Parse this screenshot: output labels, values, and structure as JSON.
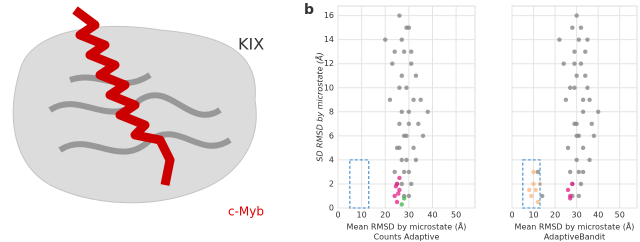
{
  "figure": {
    "panel_label": "b",
    "protein_labels": [
      "KIX",
      "c-Myb"
    ]
  },
  "chart_data": [
    {
      "type": "scatter",
      "xlabel": "Mean RMSD by microstate (Å)",
      "subtitle": "Counts Adaptive",
      "ylabel": "SD RMSD by microstate (Å)",
      "xlim": [
        0,
        58
      ],
      "ylim": [
        0,
        16.8
      ],
      "xticks": [
        0,
        10,
        20,
        30,
        40,
        50
      ],
      "yticks": [
        0,
        2,
        4,
        6,
        8,
        10,
        12,
        14,
        16
      ],
      "grid": true,
      "highlight_box": {
        "x": [
          5,
          13
        ],
        "y": [
          0,
          4
        ],
        "color": "#5a9bd4"
      },
      "series": [
        {
          "color": "#808080",
          "x": [
            25,
            27,
            28,
            30,
            29,
            31,
            27,
            26,
            33,
            35,
            24,
            26,
            32,
            30,
            28,
            34,
            22,
            29,
            31,
            27,
            25,
            33,
            30,
            36,
            23,
            28,
            32,
            26,
            29,
            31,
            38,
            20,
            27,
            30,
            24,
            28,
            26,
            29,
            27,
            30
          ],
          "y": [
            2,
            4,
            6,
            8,
            10,
            12,
            14,
            16,
            11,
            9,
            3,
            7,
            5,
            3,
            1,
            7,
            9,
            15,
            13,
            11,
            5,
            4,
            1,
            6,
            12,
            13,
            9,
            10,
            6,
            2,
            8,
            14,
            8,
            15,
            13,
            3,
            5,
            4,
            2,
            7
          ]
        },
        {
          "color": "#e0208a",
          "x": [
            24,
            25,
            26,
            25,
            26,
            24.5,
            25.5
          ],
          "y": [
            1,
            2,
            1.5,
            0.5,
            2.5,
            1.8,
            1.2
          ]
        },
        {
          "color": "#3cb44b",
          "x": [
            27,
            28
          ],
          "y": [
            0.3,
            0.8
          ]
        }
      ]
    },
    {
      "type": "scatter",
      "xlabel": "Mean RMSD by microstate (Å)",
      "subtitle": "AdaptiveBandit",
      "xlim": [
        0,
        58
      ],
      "ylim": [
        0,
        16.8
      ],
      "xticks": [
        0,
        10,
        20,
        30,
        40,
        50
      ],
      "yticks": [
        0,
        2,
        4,
        6,
        8,
        10,
        12,
        14,
        16
      ],
      "grid": true,
      "highlight_box": {
        "x": [
          5,
          13
        ],
        "y": [
          0,
          4
        ],
        "color": "#5a9bd4"
      },
      "series": [
        {
          "color": "#808080",
          "x": [
            28,
            30,
            31,
            33,
            29,
            32,
            35,
            30,
            34,
            36,
            27,
            29,
            33,
            31,
            28,
            37,
            25,
            32,
            34,
            30,
            26,
            36,
            31,
            38,
            24,
            29,
            33,
            27,
            30,
            32,
            40,
            22,
            12,
            14,
            28,
            31,
            35,
            29,
            33,
            30
          ],
          "y": [
            2,
            4,
            6,
            8,
            10,
            12,
            14,
            16,
            11,
            9,
            3,
            7,
            5,
            3,
            1,
            7,
            9,
            15,
            13,
            11,
            5,
            4,
            1,
            6,
            12,
            13,
            9,
            10,
            6,
            2,
            8,
            14,
            3,
            1,
            15,
            14,
            10,
            12,
            3,
            7
          ]
        },
        {
          "color": "#f5b880",
          "x": [
            9,
            10,
            11,
            12,
            10,
            13,
            8
          ],
          "y": [
            1,
            2,
            1.5,
            0.5,
            3,
            2,
            1.5
          ]
        },
        {
          "color": "#e0208a",
          "x": [
            27,
            28,
            26,
            27
          ],
          "y": [
            1,
            2,
            1.5,
            0.8
          ]
        }
      ]
    }
  ]
}
